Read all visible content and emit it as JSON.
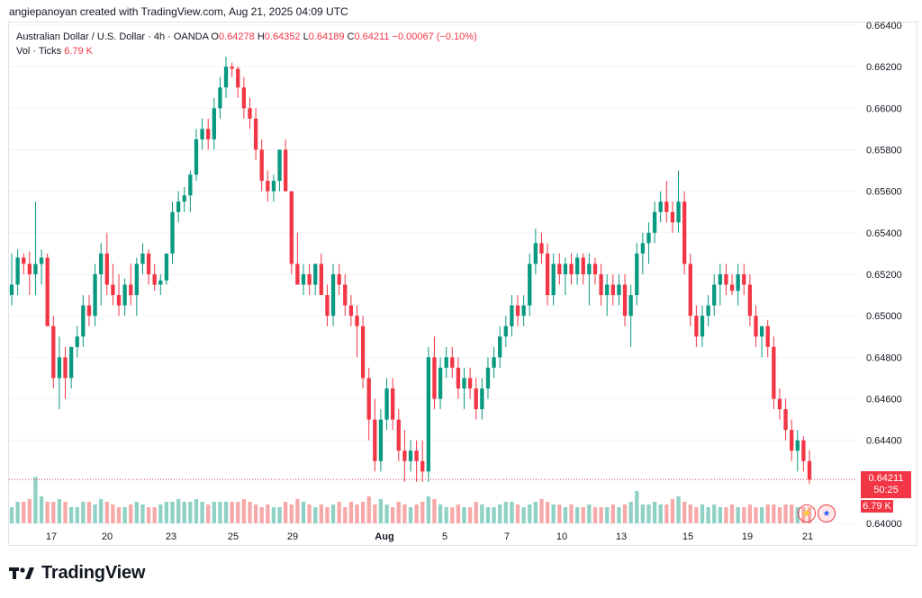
{
  "header": {
    "text": "angiepanoyan created with TradingView.com, Aug 21, 2025 04:09 UTC"
  },
  "legend": {
    "symbol": "Australian Dollar / U.S. Dollar · 4h · OANDA",
    "o_label": "O",
    "o_value": "0.64278",
    "h_label": "H",
    "h_value": "0.64352",
    "l_label": "L",
    "l_value": "0.64189",
    "c_label": "C",
    "c_value": "0.64211",
    "change": "−0.00067 (−0.10%)",
    "vol_label": "Vol · Ticks",
    "vol_value": "6.79 K"
  },
  "price_tag": {
    "price": "0.64211",
    "countdown": "50:25"
  },
  "vol_tag": {
    "value": "6.79 K"
  },
  "footer": {
    "brand": "TradingView"
  },
  "colors": {
    "up": "#089981",
    "down": "#f23645",
    "vol_up": "#8fd1c4",
    "vol_down": "#f7a9a9",
    "grid": "#f0f3fa"
  },
  "chart_data": {
    "type": "candlestick",
    "ylim": [
      0.64,
      0.664
    ],
    "y_ticks": [
      "0.66400",
      "0.66200",
      "0.66000",
      "0.65800",
      "0.65600",
      "0.65400",
      "0.65200",
      "0.65000",
      "0.64800",
      "0.64600",
      "0.64400",
      "0.64000"
    ],
    "x_ticks": [
      "17",
      "20",
      "23",
      "25",
      "29",
      "Aug",
      "5",
      "7",
      "10",
      "13",
      "15",
      "19",
      "21"
    ],
    "last_close": 0.64211,
    "candles": [
      [
        0.651,
        0.653,
        0.6505,
        0.6515,
        3.0
      ],
      [
        0.6515,
        0.6532,
        0.651,
        0.6528,
        4.0
      ],
      [
        0.6528,
        0.653,
        0.652,
        0.6525,
        4.0
      ],
      [
        0.6525,
        0.6531,
        0.651,
        0.652,
        4.5
      ],
      [
        0.652,
        0.6555,
        0.651,
        0.6525,
        8.6
      ],
      [
        0.6525,
        0.6532,
        0.6515,
        0.6528,
        5.0
      ],
      [
        0.6528,
        0.653,
        0.6495,
        0.6495,
        4.0
      ],
      [
        0.6495,
        0.65,
        0.6465,
        0.647,
        4.0
      ],
      [
        0.647,
        0.649,
        0.6455,
        0.648,
        4.5
      ],
      [
        0.648,
        0.6485,
        0.646,
        0.647,
        4.0
      ],
      [
        0.647,
        0.6485,
        0.6465,
        0.6485,
        3.0
      ],
      [
        0.6485,
        0.6495,
        0.648,
        0.649,
        3.0
      ],
      [
        0.649,
        0.651,
        0.6485,
        0.6505,
        4.0
      ],
      [
        0.6505,
        0.651,
        0.6495,
        0.65,
        4.0
      ],
      [
        0.65,
        0.6525,
        0.6495,
        0.652,
        3.5
      ],
      [
        0.652,
        0.6535,
        0.6505,
        0.653,
        4.5
      ],
      [
        0.653,
        0.654,
        0.651,
        0.6515,
        4.0
      ],
      [
        0.6515,
        0.6525,
        0.6505,
        0.651,
        3.5
      ],
      [
        0.651,
        0.652,
        0.65,
        0.6505,
        3.0
      ],
      [
        0.6505,
        0.6518,
        0.65,
        0.6515,
        3.0
      ],
      [
        0.6515,
        0.6525,
        0.6505,
        0.651,
        3.5
      ],
      [
        0.651,
        0.6528,
        0.65,
        0.6525,
        4.0
      ],
      [
        0.6525,
        0.6535,
        0.652,
        0.653,
        3.5
      ],
      [
        0.653,
        0.6532,
        0.6515,
        0.652,
        3.0
      ],
      [
        0.652,
        0.6525,
        0.6512,
        0.6515,
        3.0
      ],
      [
        0.6515,
        0.652,
        0.651,
        0.6517,
        3.5
      ],
      [
        0.6517,
        0.653,
        0.6515,
        0.653,
        4.0
      ],
      [
        0.653,
        0.6555,
        0.6525,
        0.655,
        4.0
      ],
      [
        0.655,
        0.656,
        0.6545,
        0.6555,
        4.5
      ],
      [
        0.6555,
        0.6562,
        0.655,
        0.6558,
        4.0
      ],
      [
        0.6558,
        0.657,
        0.655,
        0.6568,
        4.0
      ],
      [
        0.6568,
        0.659,
        0.6565,
        0.6585,
        4.5
      ],
      [
        0.6585,
        0.6595,
        0.658,
        0.659,
        4.0
      ],
      [
        0.659,
        0.6595,
        0.658,
        0.6585,
        3.5
      ],
      [
        0.6585,
        0.6605,
        0.658,
        0.66,
        4.0
      ],
      [
        0.66,
        0.6615,
        0.6595,
        0.661,
        4.0
      ],
      [
        0.661,
        0.6625,
        0.6605,
        0.662,
        4.0
      ],
      [
        0.662,
        0.6622,
        0.6615,
        0.6619,
        4.0
      ],
      [
        0.6619,
        0.662,
        0.6605,
        0.661,
        4.0
      ],
      [
        0.661,
        0.6615,
        0.6595,
        0.66,
        4.5
      ],
      [
        0.66,
        0.6605,
        0.659,
        0.6595,
        4.0
      ],
      [
        0.6595,
        0.66,
        0.6575,
        0.658,
        3.5
      ],
      [
        0.658,
        0.6585,
        0.656,
        0.6565,
        3.0
      ],
      [
        0.6565,
        0.657,
        0.6555,
        0.656,
        3.5
      ],
      [
        0.656,
        0.6568,
        0.6555,
        0.6565,
        3.0
      ],
      [
        0.6565,
        0.658,
        0.656,
        0.658,
        3.0
      ],
      [
        0.658,
        0.6585,
        0.656,
        0.656,
        4.0
      ],
      [
        0.656,
        0.656,
        0.652,
        0.6525,
        3.5
      ],
      [
        0.6525,
        0.654,
        0.6515,
        0.6515,
        4.5
      ],
      [
        0.6515,
        0.6525,
        0.651,
        0.652,
        4.0
      ],
      [
        0.652,
        0.6525,
        0.651,
        0.6515,
        3.5
      ],
      [
        0.6515,
        0.6525,
        0.651,
        0.6525,
        3.0
      ],
      [
        0.6525,
        0.653,
        0.651,
        0.651,
        3.5
      ],
      [
        0.651,
        0.6515,
        0.6495,
        0.65,
        3.0
      ],
      [
        0.65,
        0.6525,
        0.6495,
        0.652,
        3.5
      ],
      [
        0.652,
        0.6525,
        0.651,
        0.6515,
        4.0
      ],
      [
        0.6515,
        0.652,
        0.65,
        0.6505,
        3.0
      ],
      [
        0.6505,
        0.651,
        0.6495,
        0.65,
        4.0
      ],
      [
        0.65,
        0.6505,
        0.648,
        0.6495,
        3.5
      ],
      [
        0.6495,
        0.65,
        0.6465,
        0.647,
        4.0
      ],
      [
        0.647,
        0.6475,
        0.644,
        0.645,
        5.0
      ],
      [
        0.645,
        0.646,
        0.6425,
        0.643,
        3.5
      ],
      [
        0.643,
        0.6455,
        0.6425,
        0.645,
        4.5
      ],
      [
        0.645,
        0.647,
        0.6445,
        0.6465,
        3.5
      ],
      [
        0.6465,
        0.647,
        0.6445,
        0.645,
        3.0
      ],
      [
        0.645,
        0.6455,
        0.643,
        0.6435,
        4.0
      ],
      [
        0.6435,
        0.6445,
        0.642,
        0.643,
        3.5
      ],
      [
        0.643,
        0.644,
        0.6425,
        0.6435,
        3.0
      ],
      [
        0.6435,
        0.644,
        0.642,
        0.643,
        3.5
      ],
      [
        0.643,
        0.644,
        0.642,
        0.6425,
        4.0
      ],
      [
        0.6425,
        0.6485,
        0.642,
        0.648,
        5.0
      ],
      [
        0.648,
        0.649,
        0.6455,
        0.646,
        4.5
      ],
      [
        0.646,
        0.648,
        0.6455,
        0.6475,
        3.5
      ],
      [
        0.6475,
        0.6485,
        0.647,
        0.648,
        3.0
      ],
      [
        0.648,
        0.6485,
        0.647,
        0.6475,
        3.0
      ],
      [
        0.6475,
        0.648,
        0.646,
        0.6465,
        3.5
      ],
      [
        0.6465,
        0.6475,
        0.6455,
        0.647,
        3.0
      ],
      [
        0.647,
        0.6475,
        0.646,
        0.6465,
        3.0
      ],
      [
        0.6465,
        0.647,
        0.645,
        0.6455,
        4.0
      ],
      [
        0.6455,
        0.647,
        0.645,
        0.6465,
        3.5
      ],
      [
        0.6465,
        0.648,
        0.646,
        0.6475,
        3.0
      ],
      [
        0.6475,
        0.6485,
        0.647,
        0.648,
        3.0
      ],
      [
        0.648,
        0.6495,
        0.6475,
        0.649,
        3.5
      ],
      [
        0.649,
        0.65,
        0.6485,
        0.6495,
        4.0
      ],
      [
        0.6495,
        0.651,
        0.649,
        0.6505,
        4.0
      ],
      [
        0.6505,
        0.651,
        0.6495,
        0.65,
        3.5
      ],
      [
        0.65,
        0.651,
        0.6495,
        0.6505,
        3.0
      ],
      [
        0.6505,
        0.653,
        0.65,
        0.6525,
        3.5
      ],
      [
        0.6525,
        0.6542,
        0.652,
        0.6535,
        4.0
      ],
      [
        0.6535,
        0.654,
        0.6525,
        0.653,
        4.5
      ],
      [
        0.653,
        0.6535,
        0.6505,
        0.651,
        4.0
      ],
      [
        0.651,
        0.653,
        0.6505,
        0.6525,
        3.5
      ],
      [
        0.6525,
        0.653,
        0.6515,
        0.652,
        3.5
      ],
      [
        0.652,
        0.6528,
        0.651,
        0.6525,
        3.0
      ],
      [
        0.6525,
        0.653,
        0.6515,
        0.652,
        3.5
      ],
      [
        0.652,
        0.653,
        0.6515,
        0.6528,
        3.0
      ],
      [
        0.6528,
        0.653,
        0.6515,
        0.652,
        3.0
      ],
      [
        0.652,
        0.653,
        0.6505,
        0.6525,
        3.5
      ],
      [
        0.6525,
        0.6528,
        0.6515,
        0.652,
        3.0
      ],
      [
        0.652,
        0.6525,
        0.6505,
        0.651,
        3.0
      ],
      [
        0.651,
        0.652,
        0.65,
        0.6515,
        3.0
      ],
      [
        0.6515,
        0.652,
        0.6505,
        0.651,
        3.5
      ],
      [
        0.651,
        0.652,
        0.6505,
        0.6515,
        3.0
      ],
      [
        0.6515,
        0.652,
        0.6495,
        0.65,
        3.5
      ],
      [
        0.65,
        0.6515,
        0.6485,
        0.651,
        4.0
      ],
      [
        0.651,
        0.6535,
        0.6505,
        0.653,
        6.0
      ],
      [
        0.653,
        0.654,
        0.652,
        0.6535,
        3.5
      ],
      [
        0.6535,
        0.6545,
        0.6525,
        0.654,
        3.5
      ],
      [
        0.654,
        0.6555,
        0.6535,
        0.655,
        4.0
      ],
      [
        0.655,
        0.656,
        0.6545,
        0.6555,
        3.5
      ],
      [
        0.6555,
        0.6565,
        0.6545,
        0.655,
        3.5
      ],
      [
        0.655,
        0.6555,
        0.654,
        0.6545,
        4.5
      ],
      [
        0.6545,
        0.657,
        0.654,
        0.6555,
        5.0
      ],
      [
        0.6555,
        0.656,
        0.652,
        0.6525,
        4.0
      ],
      [
        0.6525,
        0.653,
        0.6495,
        0.65,
        3.5
      ],
      [
        0.65,
        0.6505,
        0.6485,
        0.649,
        3.0
      ],
      [
        0.649,
        0.6505,
        0.6485,
        0.65,
        3.5
      ],
      [
        0.65,
        0.651,
        0.6495,
        0.6505,
        3.0
      ],
      [
        0.6505,
        0.652,
        0.65,
        0.6515,
        3.5
      ],
      [
        0.6515,
        0.6525,
        0.6505,
        0.652,
        3.0
      ],
      [
        0.652,
        0.6525,
        0.651,
        0.6515,
        3.0
      ],
      [
        0.6515,
        0.652,
        0.651,
        0.6512,
        3.5
      ],
      [
        0.6512,
        0.6525,
        0.6505,
        0.652,
        3.0
      ],
      [
        0.652,
        0.6525,
        0.651,
        0.6515,
        3.0
      ],
      [
        0.6515,
        0.652,
        0.6495,
        0.65,
        3.5
      ],
      [
        0.65,
        0.6505,
        0.6485,
        0.649,
        3.0
      ],
      [
        0.649,
        0.6495,
        0.648,
        0.6495,
        3.0
      ],
      [
        0.6495,
        0.6498,
        0.648,
        0.6485,
        3.5
      ],
      [
        0.6485,
        0.649,
        0.6455,
        0.646,
        3.5
      ],
      [
        0.646,
        0.6465,
        0.645,
        0.6455,
        3.0
      ],
      [
        0.6455,
        0.646,
        0.644,
        0.6445,
        3.5
      ],
      [
        0.6445,
        0.645,
        0.643,
        0.6435,
        3.5
      ],
      [
        0.6435,
        0.6445,
        0.6425,
        0.644,
        3.0
      ],
      [
        0.644,
        0.6442,
        0.6425,
        0.643,
        3.0
      ],
      [
        0.643,
        0.64352,
        0.64189,
        0.64211,
        3.0
      ]
    ]
  }
}
